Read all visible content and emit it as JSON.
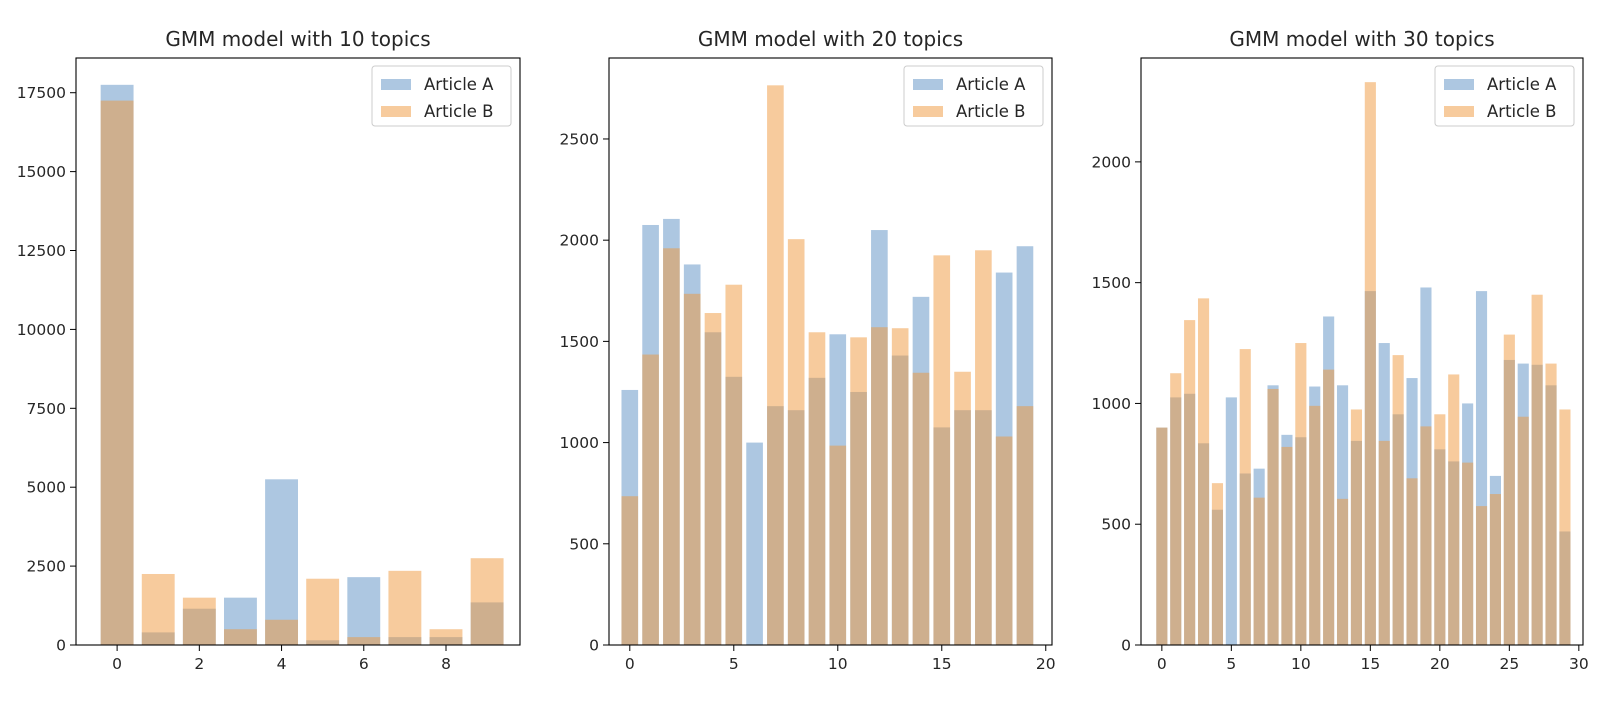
{
  "colors": {
    "series_a": "#5b8fc3",
    "series_b": "#f0983b",
    "axis": "#000000",
    "legend_border": "#cccccc",
    "text": "#262626"
  },
  "series_opacity": 0.5,
  "chart_data": [
    {
      "type": "bar",
      "title": "GMM model with 10 topics",
      "xlabel": "",
      "ylabel": "",
      "x": [
        0,
        1,
        2,
        3,
        4,
        5,
        6,
        7,
        8,
        9
      ],
      "xlim": [
        -1.0,
        9.8
      ],
      "ylim": [
        0,
        18600
      ],
      "xticks": [
        0,
        2,
        4,
        6,
        8
      ],
      "yticks": [
        0,
        2500,
        5000,
        7500,
        10000,
        12500,
        15000,
        17500
      ],
      "legend": "top-right",
      "series": [
        {
          "name": "Article A",
          "values": [
            17750,
            400,
            1150,
            1500,
            5250,
            150,
            2150,
            250,
            250,
            1350
          ]
        },
        {
          "name": "Article B",
          "values": [
            17250,
            2250,
            1500,
            500,
            800,
            2100,
            250,
            2350,
            500,
            2750
          ]
        }
      ]
    },
    {
      "type": "bar",
      "title": "GMM model with 20 topics",
      "xlabel": "",
      "ylabel": "",
      "x": [
        0,
        1,
        2,
        3,
        4,
        5,
        6,
        7,
        8,
        9,
        10,
        11,
        12,
        13,
        14,
        15,
        16,
        17,
        18,
        19
      ],
      "xlim": [
        -1.0,
        20.3
      ],
      "ylim": [
        0,
        2900
      ],
      "xticks": [
        0,
        5,
        10,
        15,
        20
      ],
      "yticks": [
        0,
        500,
        1000,
        1500,
        2000,
        2500
      ],
      "legend": "top-right",
      "series": [
        {
          "name": "Article A",
          "values": [
            1260,
            2075,
            2105,
            1880,
            1545,
            1325,
            1000,
            1180,
            1160,
            1320,
            1535,
            1250,
            2050,
            1430,
            1720,
            1075,
            1160,
            1160,
            1840,
            1970
          ]
        },
        {
          "name": "Article B",
          "values": [
            735,
            1435,
            1960,
            1735,
            1640,
            1780,
            0,
            2765,
            2005,
            1545,
            985,
            1520,
            1570,
            1565,
            1345,
            1925,
            1350,
            1950,
            1030,
            1180
          ]
        }
      ]
    },
    {
      "type": "bar",
      "title": "GMM model with 30 topics",
      "xlabel": "",
      "ylabel": "",
      "x": [
        0,
        1,
        2,
        3,
        4,
        5,
        6,
        7,
        8,
        9,
        10,
        11,
        12,
        13,
        14,
        15,
        16,
        17,
        18,
        19,
        20,
        21,
        22,
        23,
        24,
        25,
        26,
        27,
        28,
        29
      ],
      "xlim": [
        -1.5,
        30.3
      ],
      "ylim": [
        0,
        2430
      ],
      "xticks": [
        0,
        5,
        10,
        15,
        20,
        25,
        30
      ],
      "yticks": [
        0,
        500,
        1000,
        1500,
        2000
      ],
      "legend": "top-right",
      "series": [
        {
          "name": "Article A",
          "values": [
            900,
            1025,
            1040,
            835,
            560,
            1025,
            710,
            730,
            1075,
            870,
            860,
            1070,
            1360,
            1075,
            845,
            1465,
            1250,
            955,
            1105,
            1480,
            810,
            760,
            1000,
            1465,
            700,
            1180,
            1165,
            1160,
            1075,
            470
          ]
        },
        {
          "name": "Article B",
          "values": [
            900,
            1125,
            1345,
            1435,
            670,
            0,
            1225,
            610,
            1060,
            820,
            1250,
            990,
            1140,
            605,
            975,
            2330,
            845,
            1200,
            690,
            905,
            955,
            1120,
            755,
            575,
            625,
            1285,
            945,
            1450,
            1165,
            975
          ]
        }
      ]
    }
  ]
}
